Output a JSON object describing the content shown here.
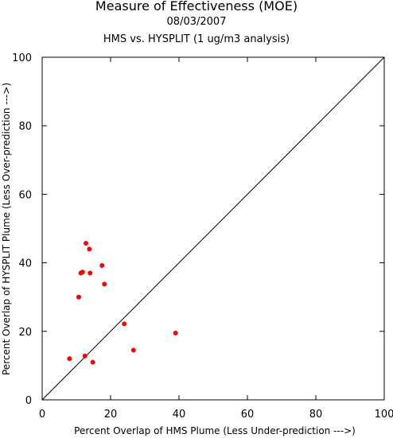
{
  "chart_data": {
    "type": "scatter",
    "title": "Measure of Effectiveness (MOE)",
    "subtitle_date": "08/03/2007",
    "subtitle_analysis": "HMS vs. HYSPLIT  (1 ug/m3 analysis)",
    "xlabel": "Percent Overlap of HMS Plume (Less Under-prediction --->)",
    "ylabel": "Percent Overlap of HYSPLIT Plume (Less Over-prediction --->)",
    "xlim": [
      0,
      100
    ],
    "ylim": [
      0,
      100
    ],
    "xticks": [
      0,
      20,
      40,
      60,
      80,
      100
    ],
    "yticks": [
      0,
      20,
      40,
      60,
      80,
      100
    ],
    "reference_line": "diagonal y = x",
    "marker_color": "#ff0000",
    "points": [
      {
        "x": 8.0,
        "y": 12.0
      },
      {
        "x": 10.7,
        "y": 30.0
      },
      {
        "x": 11.3,
        "y": 37.0
      },
      {
        "x": 11.8,
        "y": 37.3
      },
      {
        "x": 12.5,
        "y": 12.8
      },
      {
        "x": 12.8,
        "y": 45.7
      },
      {
        "x": 13.8,
        "y": 44.0
      },
      {
        "x": 14.0,
        "y": 37.0
      },
      {
        "x": 14.8,
        "y": 11.0
      },
      {
        "x": 17.5,
        "y": 39.2
      },
      {
        "x": 18.2,
        "y": 33.8
      },
      {
        "x": 24.0,
        "y": 22.2
      },
      {
        "x": 26.7,
        "y": 14.5
      },
      {
        "x": 39.0,
        "y": 19.5
      }
    ]
  }
}
